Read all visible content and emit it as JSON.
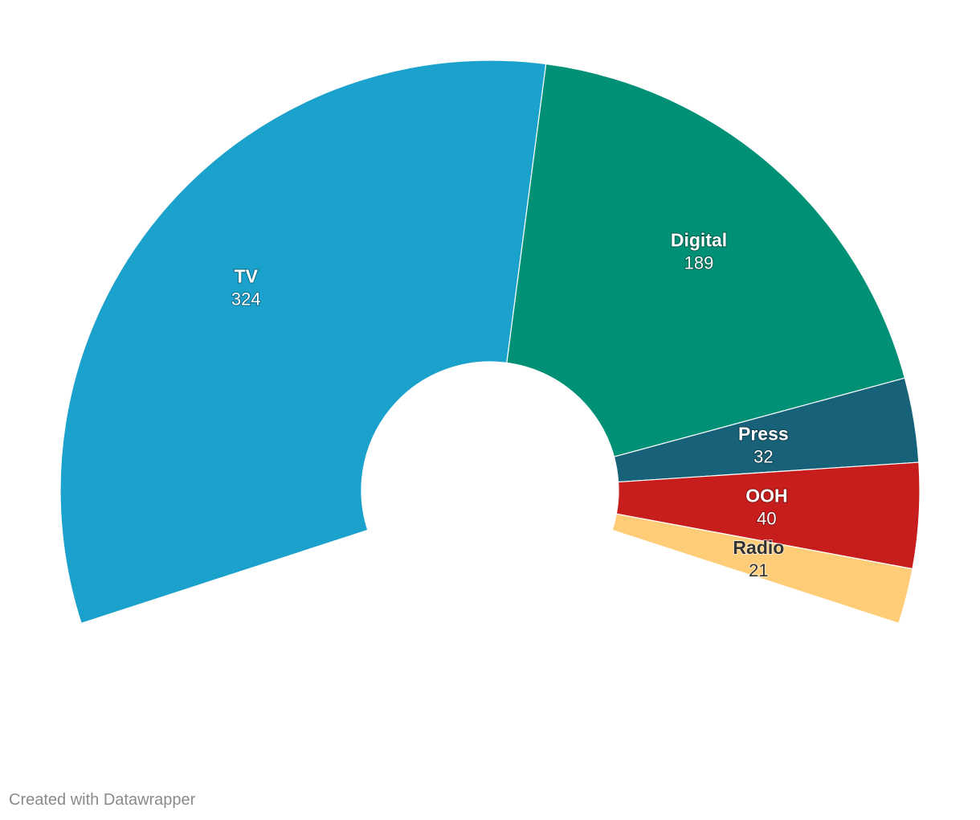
{
  "chart_data": {
    "type": "pie",
    "subtype": "semi-donut",
    "categories": [
      "TV",
      "Digital",
      "Press",
      "OOH",
      "Radio"
    ],
    "values": [
      324,
      189,
      32,
      40,
      21
    ],
    "colors": [
      "#1aa1cc",
      "#009076",
      "#176279",
      "#c71d1d",
      "#ffcc78"
    ],
    "label_styles": [
      "light",
      "light",
      "light",
      "light",
      "dark"
    ],
    "title": "",
    "legend": "none"
  },
  "footer": {
    "credit": "Created with Datawrapper"
  }
}
